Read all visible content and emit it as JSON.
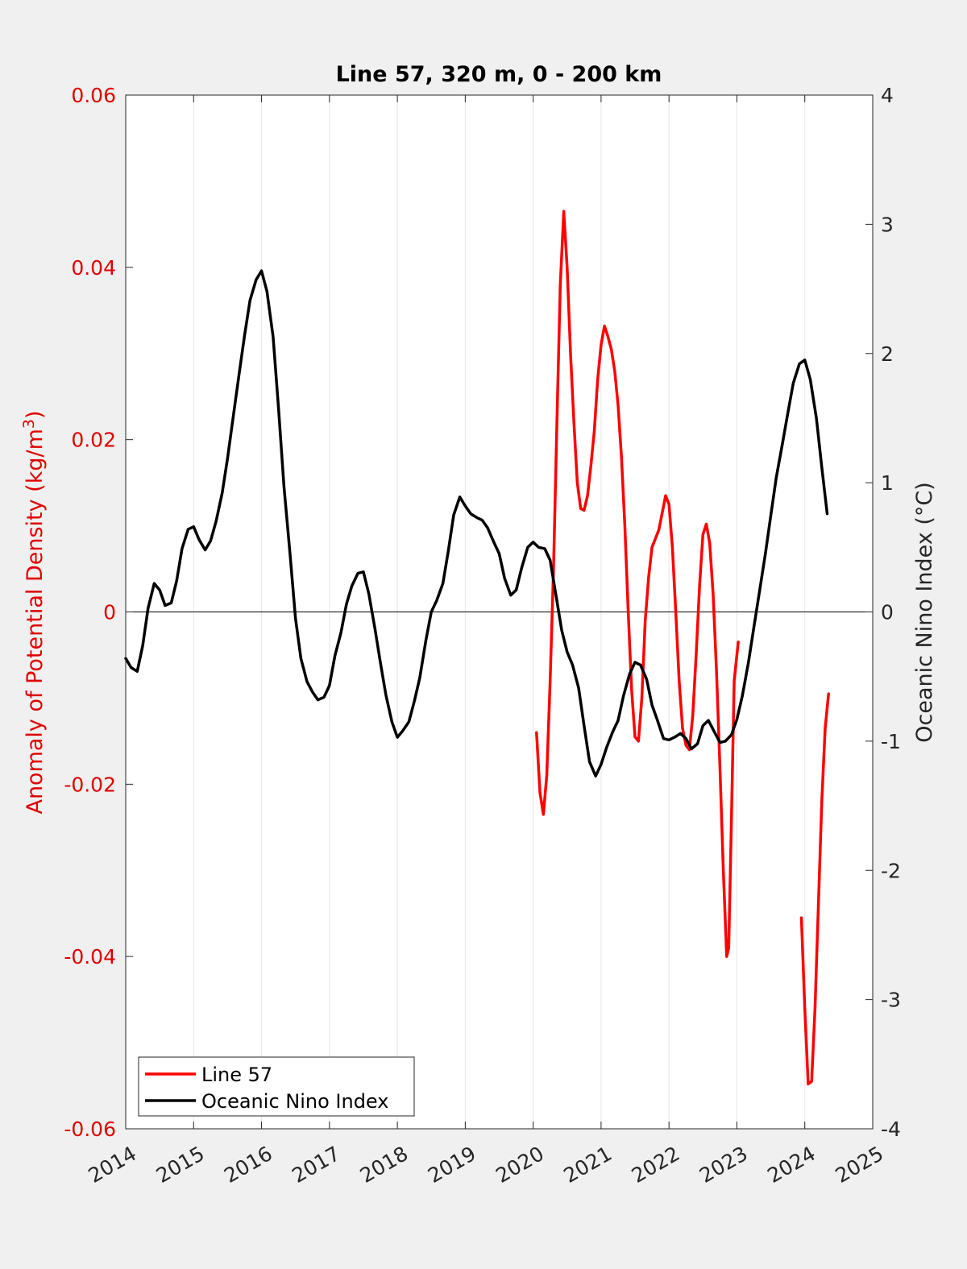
{
  "chart_data": {
    "type": "line",
    "title": "Line 57, 320 m, 0 - 200 km",
    "xlabel": "",
    "y_left_label": "Anomaly of Potential Density (kg/m",
    "y_left_label_sup": "3",
    "y_left_label_end": ")",
    "y_right_label": "Oceanic Nino Index (°C)",
    "xlim": [
      2014,
      2025
    ],
    "ylim_left": [
      -0.06,
      0.06
    ],
    "ylim_right": [
      -4,
      4
    ],
    "x_ticks": [
      "2014",
      "2015",
      "2016",
      "2017",
      "2018",
      "2019",
      "2020",
      "2021",
      "2022",
      "2023",
      "2024",
      "2025"
    ],
    "y_left_ticks": [
      "0.06",
      "0.04",
      "0.02",
      "0",
      "-0.02",
      "-0.04",
      "-0.06"
    ],
    "y_right_ticks": [
      "4",
      "3",
      "2",
      "1",
      "0",
      "-1",
      "-2",
      "-3",
      "-4"
    ],
    "grid": "vertical",
    "legend_position": "bottom-left",
    "colors": {
      "left_axis": "#e00000",
      "series_line57": "#ff0000",
      "series_oni": "#000000"
    },
    "series": [
      {
        "name": "Line 57",
        "axis": "left",
        "segments": [
          [
            [
              2020.05,
              -0.014
            ],
            [
              2020.1,
              -0.021
            ],
            [
              2020.15,
              -0.0235
            ],
            [
              2020.2,
              -0.019
            ],
            [
              2020.25,
              -0.008
            ],
            [
              2020.3,
              0.005
            ],
            [
              2020.35,
              0.022
            ],
            [
              2020.4,
              0.038
            ],
            [
              2020.45,
              0.0465
            ],
            [
              2020.5,
              0.04
            ],
            [
              2020.55,
              0.03
            ],
            [
              2020.6,
              0.022
            ],
            [
              2020.65,
              0.015
            ],
            [
              2020.7,
              0.012
            ],
            [
              2020.75,
              0.0118
            ],
            [
              2020.8,
              0.0135
            ],
            [
              2020.85,
              0.017
            ],
            [
              2020.9,
              0.021
            ],
            [
              2020.95,
              0.027
            ],
            [
              2021.0,
              0.031
            ],
            [
              2021.05,
              0.0332
            ],
            [
              2021.1,
              0.032
            ],
            [
              2021.15,
              0.0305
            ],
            [
              2021.2,
              0.028
            ],
            [
              2021.25,
              0.024
            ],
            [
              2021.3,
              0.018
            ],
            [
              2021.35,
              0.01
            ],
            [
              2021.4,
              0.0
            ],
            [
              2021.45,
              -0.009
            ],
            [
              2021.5,
              -0.0145
            ],
            [
              2021.55,
              -0.015
            ],
            [
              2021.6,
              -0.01
            ],
            [
              2021.65,
              -0.001
            ],
            [
              2021.7,
              0.004
            ],
            [
              2021.75,
              0.0075
            ],
            [
              2021.8,
              0.0085
            ],
            [
              2021.85,
              0.0095
            ],
            [
              2021.9,
              0.0115
            ],
            [
              2021.95,
              0.0135
            ],
            [
              2022.0,
              0.0125
            ],
            [
              2022.05,
              0.0075
            ],
            [
              2022.1,
              0.0
            ],
            [
              2022.15,
              -0.008
            ],
            [
              2022.2,
              -0.0135
            ],
            [
              2022.25,
              -0.0155
            ],
            [
              2022.3,
              -0.016
            ],
            [
              2022.35,
              -0.012
            ],
            [
              2022.4,
              -0.005
            ],
            [
              2022.45,
              0.003
            ],
            [
              2022.5,
              0.009
            ],
            [
              2022.55,
              0.0102
            ],
            [
              2022.6,
              0.008
            ],
            [
              2022.65,
              0.002
            ],
            [
              2022.7,
              -0.007
            ],
            [
              2022.75,
              -0.018
            ],
            [
              2022.8,
              -0.03
            ],
            [
              2022.85,
              -0.04
            ],
            [
              2022.88,
              -0.039
            ],
            [
              2022.92,
              -0.024
            ],
            [
              2022.96,
              -0.008
            ],
            [
              2023.02,
              -0.0035
            ]
          ],
          [
            [
              2023.95,
              -0.0355
            ],
            [
              2024.0,
              -0.046
            ],
            [
              2024.05,
              -0.0548
            ],
            [
              2024.1,
              -0.0545
            ],
            [
              2024.15,
              -0.046
            ],
            [
              2024.2,
              -0.034
            ],
            [
              2024.25,
              -0.022
            ],
            [
              2024.3,
              -0.0135
            ],
            [
              2024.35,
              -0.0095
            ]
          ]
        ]
      },
      {
        "name": "Oceanic Nino Index",
        "axis": "right",
        "segments": [
          [
            [
              2014.0,
              -0.36
            ],
            [
              2014.08,
              -0.43
            ],
            [
              2014.17,
              -0.46
            ],
            [
              2014.25,
              -0.26
            ],
            [
              2014.33,
              0.03
            ],
            [
              2014.42,
              0.22
            ],
            [
              2014.5,
              0.17
            ],
            [
              2014.58,
              0.05
            ],
            [
              2014.67,
              0.07
            ],
            [
              2014.75,
              0.24
            ],
            [
              2014.83,
              0.49
            ],
            [
              2014.92,
              0.64
            ],
            [
              2015.0,
              0.66
            ],
            [
              2015.08,
              0.56
            ],
            [
              2015.17,
              0.48
            ],
            [
              2015.25,
              0.55
            ],
            [
              2015.33,
              0.7
            ],
            [
              2015.42,
              0.92
            ],
            [
              2015.5,
              1.19
            ],
            [
              2015.58,
              1.5
            ],
            [
              2015.67,
              1.84
            ],
            [
              2015.75,
              2.14
            ],
            [
              2015.83,
              2.41
            ],
            [
              2015.92,
              2.57
            ],
            [
              2016.0,
              2.64
            ],
            [
              2016.08,
              2.48
            ],
            [
              2016.17,
              2.13
            ],
            [
              2016.25,
              1.58
            ],
            [
              2016.33,
              0.97
            ],
            [
              2016.42,
              0.45
            ],
            [
              2016.5,
              -0.05
            ],
            [
              2016.58,
              -0.36
            ],
            [
              2016.67,
              -0.54
            ],
            [
              2016.75,
              -0.62
            ],
            [
              2016.83,
              -0.68
            ],
            [
              2016.92,
              -0.66
            ],
            [
              2017.0,
              -0.57
            ],
            [
              2017.08,
              -0.34
            ],
            [
              2017.17,
              -0.16
            ],
            [
              2017.25,
              0.06
            ],
            [
              2017.33,
              0.2
            ],
            [
              2017.42,
              0.3
            ],
            [
              2017.5,
              0.31
            ],
            [
              2017.58,
              0.14
            ],
            [
              2017.67,
              -0.13
            ],
            [
              2017.75,
              -0.39
            ],
            [
              2017.83,
              -0.64
            ],
            [
              2017.92,
              -0.85
            ],
            [
              2018.0,
              -0.97
            ],
            [
              2018.08,
              -0.92
            ],
            [
              2018.17,
              -0.85
            ],
            [
              2018.25,
              -0.69
            ],
            [
              2018.33,
              -0.51
            ],
            [
              2018.42,
              -0.22
            ],
            [
              2018.5,
              0.0
            ],
            [
              2018.58,
              0.09
            ],
            [
              2018.67,
              0.22
            ],
            [
              2018.75,
              0.47
            ],
            [
              2018.83,
              0.75
            ],
            [
              2018.92,
              0.89
            ],
            [
              2019.0,
              0.82
            ],
            [
              2019.08,
              0.76
            ],
            [
              2019.17,
              0.73
            ],
            [
              2019.25,
              0.71
            ],
            [
              2019.33,
              0.65
            ],
            [
              2019.42,
              0.54
            ],
            [
              2019.5,
              0.45
            ],
            [
              2019.58,
              0.26
            ],
            [
              2019.67,
              0.13
            ],
            [
              2019.75,
              0.17
            ],
            [
              2019.83,
              0.34
            ],
            [
              2019.92,
              0.5
            ],
            [
              2020.0,
              0.54
            ],
            [
              2020.08,
              0.5
            ],
            [
              2020.17,
              0.49
            ],
            [
              2020.25,
              0.4
            ],
            [
              2020.33,
              0.15
            ],
            [
              2020.42,
              -0.14
            ],
            [
              2020.5,
              -0.31
            ],
            [
              2020.58,
              -0.41
            ],
            [
              2020.67,
              -0.59
            ],
            [
              2020.75,
              -0.88
            ],
            [
              2020.83,
              -1.16
            ],
            [
              2020.92,
              -1.27
            ],
            [
              2021.0,
              -1.18
            ],
            [
              2021.08,
              -1.05
            ],
            [
              2021.17,
              -0.93
            ],
            [
              2021.25,
              -0.84
            ],
            [
              2021.33,
              -0.65
            ],
            [
              2021.42,
              -0.48
            ],
            [
              2021.5,
              -0.39
            ],
            [
              2021.58,
              -0.41
            ],
            [
              2021.67,
              -0.52
            ],
            [
              2021.75,
              -0.72
            ],
            [
              2021.83,
              -0.84
            ],
            [
              2021.92,
              -0.98
            ],
            [
              2022.0,
              -0.99
            ],
            [
              2022.08,
              -0.97
            ],
            [
              2022.17,
              -0.94
            ],
            [
              2022.25,
              -0.98
            ],
            [
              2022.33,
              -1.06
            ],
            [
              2022.42,
              -1.02
            ],
            [
              2022.5,
              -0.88
            ],
            [
              2022.58,
              -0.84
            ],
            [
              2022.67,
              -0.93
            ],
            [
              2022.75,
              -1.01
            ],
            [
              2022.83,
              -1.0
            ],
            [
              2022.92,
              -0.95
            ],
            [
              2023.0,
              -0.83
            ],
            [
              2023.08,
              -0.65
            ],
            [
              2023.17,
              -0.39
            ],
            [
              2023.25,
              -0.12
            ],
            [
              2023.33,
              0.15
            ],
            [
              2023.42,
              0.45
            ],
            [
              2023.5,
              0.75
            ],
            [
              2023.58,
              1.04
            ],
            [
              2023.67,
              1.3
            ],
            [
              2023.75,
              1.54
            ],
            [
              2023.83,
              1.77
            ],
            [
              2023.92,
              1.92
            ],
            [
              2024.0,
              1.95
            ],
            [
              2024.08,
              1.8
            ],
            [
              2024.17,
              1.5
            ],
            [
              2024.25,
              1.12
            ],
            [
              2024.33,
              0.76
            ]
          ]
        ]
      }
    ]
  }
}
